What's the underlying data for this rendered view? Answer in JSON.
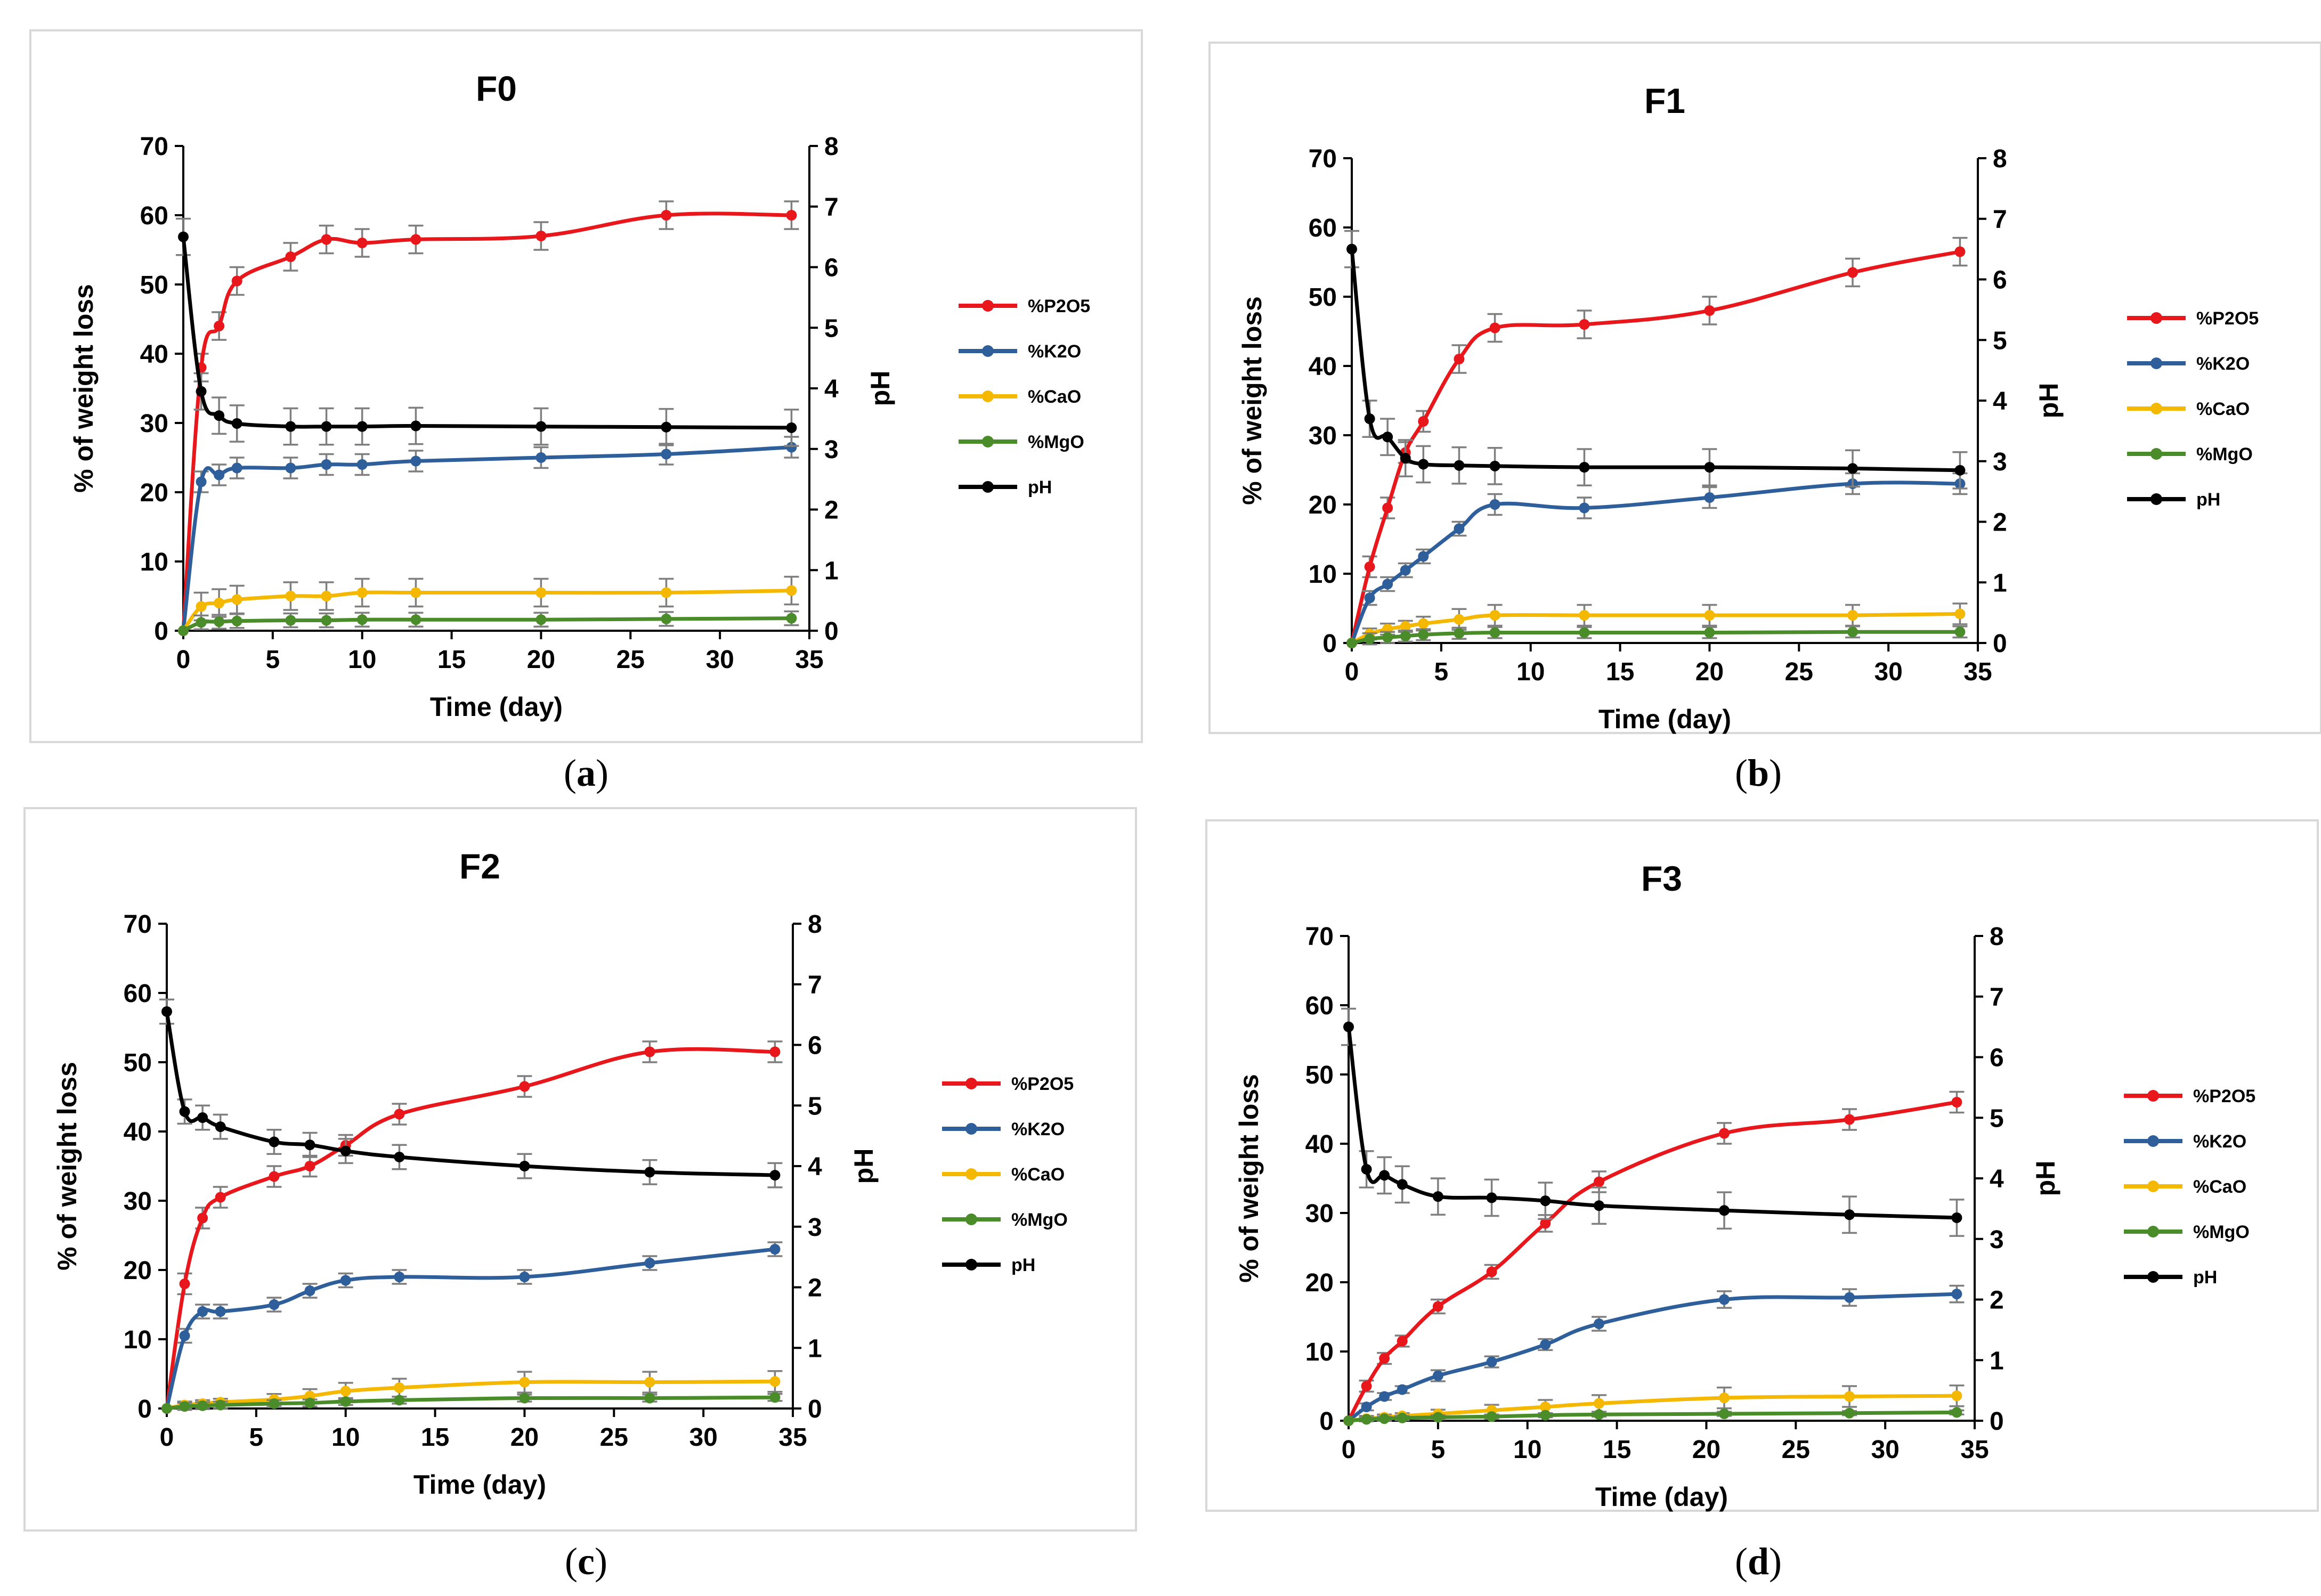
{
  "figure": {
    "panels": [
      {
        "caption_open": "(",
        "caption_letter": "a",
        "caption_close": ")"
      },
      {
        "caption_open": "(",
        "caption_letter": "b",
        "caption_close": ")"
      },
      {
        "caption_open": "(",
        "caption_letter": "c",
        "caption_close": ")"
      },
      {
        "caption_open": "(",
        "caption_letter": "d",
        "caption_close": ")"
      }
    ]
  },
  "chart_data": [
    {
      "type": "line",
      "title": "F0",
      "xlabel": "Time (day)",
      "ylabel": "% of weight loss",
      "y2label": "pH",
      "xlim": [
        0,
        35
      ],
      "ylim": [
        0,
        70
      ],
      "y2lim": [
        0,
        8
      ],
      "xticks": [
        "0",
        "5",
        "10",
        "15",
        "20",
        "25",
        "30",
        "35"
      ],
      "yticks": [
        "0",
        "10",
        "20",
        "30",
        "40",
        "50",
        "60",
        "70"
      ],
      "y2ticks": [
        "0",
        "1",
        "2",
        "3",
        "4",
        "5",
        "6",
        "7",
        "8"
      ],
      "legend_position": "right",
      "series": [
        {
          "name": "%P2O5",
          "color": "#e8171c",
          "axis": "left",
          "x": [
            0,
            1,
            2,
            3,
            6,
            8,
            10,
            13,
            20,
            27,
            34
          ],
          "y": [
            0,
            38,
            44,
            50.5,
            54,
            56.5,
            56,
            56.5,
            57,
            60,
            60
          ],
          "err": [
            0,
            2,
            2,
            2,
            2,
            2,
            2,
            2,
            2,
            2,
            2
          ]
        },
        {
          "name": "%K2O",
          "color": "#2e5f9a",
          "axis": "left",
          "x": [
            0,
            1,
            2,
            3,
            6,
            8,
            10,
            13,
            20,
            27,
            34
          ],
          "y": [
            0,
            21.5,
            22.5,
            23.5,
            23.5,
            24,
            24,
            24.5,
            25,
            25.5,
            26.5
          ],
          "err": [
            0,
            1.5,
            1.5,
            1.5,
            1.5,
            1.5,
            1.5,
            1.5,
            1.5,
            1.5,
            1.5
          ]
        },
        {
          "name": "%CaO",
          "color": "#f5b800",
          "axis": "left",
          "x": [
            0,
            1,
            2,
            3,
            6,
            8,
            10,
            13,
            20,
            27,
            34
          ],
          "y": [
            0,
            3.5,
            4,
            4.5,
            5,
            5,
            5.5,
            5.5,
            5.5,
            5.5,
            5.8
          ],
          "err": [
            0,
            2,
            2,
            2,
            2,
            2,
            2,
            2,
            2,
            2,
            2
          ]
        },
        {
          "name": "%MgO",
          "color": "#4a8c2a",
          "axis": "left",
          "x": [
            0,
            1,
            2,
            3,
            6,
            8,
            10,
            13,
            20,
            27,
            34
          ],
          "y": [
            0,
            1.2,
            1.3,
            1.4,
            1.5,
            1.5,
            1.6,
            1.6,
            1.6,
            1.7,
            1.8
          ],
          "err": [
            0,
            1,
            1,
            1,
            1,
            1,
            1,
            1,
            1,
            1,
            1
          ]
        },
        {
          "name": "pH",
          "color": "#000000",
          "axis": "right",
          "x": [
            0,
            1,
            2,
            3,
            6,
            8,
            10,
            13,
            20,
            27,
            34
          ],
          "y": [
            6.5,
            3.95,
            3.55,
            3.42,
            3.37,
            3.37,
            3.37,
            3.38,
            3.37,
            3.36,
            3.35
          ],
          "err": [
            0.3,
            0.3,
            0.3,
            0.3,
            0.3,
            0.3,
            0.3,
            0.3,
            0.3,
            0.3,
            0.3
          ]
        }
      ]
    },
    {
      "type": "line",
      "title": "F1",
      "xlabel": "Time (day)",
      "ylabel": "% of weight loss",
      "y2label": "pH",
      "xlim": [
        0,
        35
      ],
      "ylim": [
        0,
        70
      ],
      "y2lim": [
        0,
        8
      ],
      "xticks": [
        "0",
        "5",
        "10",
        "15",
        "20",
        "25",
        "30",
        "35"
      ],
      "yticks": [
        "0",
        "10",
        "20",
        "30",
        "40",
        "50",
        "60",
        "70"
      ],
      "y2ticks": [
        "0",
        "1",
        "2",
        "3",
        "4",
        "5",
        "6",
        "7",
        "8"
      ],
      "legend_position": "right",
      "series": [
        {
          "name": "%P2O5",
          "color": "#e8171c",
          "axis": "left",
          "x": [
            0,
            1,
            2,
            3,
            4,
            6,
            8,
            13,
            20,
            28,
            34
          ],
          "y": [
            0,
            11,
            19.5,
            27.5,
            32,
            41,
            45.5,
            46,
            48,
            53.5,
            56.5
          ],
          "err": [
            0,
            1.5,
            1.5,
            1.5,
            1.5,
            2,
            2,
            2,
            2,
            2,
            2
          ]
        },
        {
          "name": "%K2O",
          "color": "#2e5f9a",
          "axis": "left",
          "x": [
            0,
            1,
            2,
            3,
            4,
            6,
            8,
            13,
            20,
            28,
            34
          ],
          "y": [
            0,
            6.5,
            8.5,
            10.5,
            12.5,
            16.5,
            20,
            19.5,
            21,
            23,
            23
          ],
          "err": [
            0,
            1,
            1,
            1,
            1,
            1,
            1.5,
            1.5,
            1.5,
            1.5,
            1.5
          ]
        },
        {
          "name": "%CaO",
          "color": "#f5b800",
          "axis": "left",
          "x": [
            0,
            1,
            2,
            3,
            4,
            6,
            8,
            13,
            20,
            28,
            34
          ],
          "y": [
            0,
            1.3,
            2,
            2.4,
            2.8,
            3.4,
            4,
            4,
            4,
            4,
            4.2
          ],
          "err": [
            0,
            0.8,
            0.8,
            0.8,
            1,
            1.5,
            1.5,
            1.5,
            1.5,
            1.5,
            1.5
          ]
        },
        {
          "name": "%MgO",
          "color": "#4a8c2a",
          "axis": "left",
          "x": [
            0,
            1,
            2,
            3,
            4,
            6,
            8,
            13,
            20,
            28,
            34
          ],
          "y": [
            0,
            0.6,
            0.8,
            1,
            1.2,
            1.4,
            1.5,
            1.5,
            1.5,
            1.6,
            1.6
          ],
          "err": [
            0,
            0.8,
            0.8,
            0.8,
            0.8,
            0.8,
            0.8,
            0.8,
            0.8,
            0.8,
            0.8
          ]
        },
        {
          "name": "pH",
          "color": "#000000",
          "axis": "right",
          "x": [
            0,
            1,
            2,
            3,
            4,
            6,
            8,
            13,
            20,
            28,
            34
          ],
          "y": [
            6.5,
            3.7,
            3.4,
            3.05,
            2.95,
            2.93,
            2.92,
            2.9,
            2.9,
            2.88,
            2.85
          ],
          "err": [
            0.3,
            0.3,
            0.3,
            0.3,
            0.3,
            0.3,
            0.3,
            0.3,
            0.3,
            0.3,
            0.3
          ]
        }
      ]
    },
    {
      "type": "line",
      "title": "F2",
      "xlabel": "Time (day)",
      "ylabel": "% of weight loss",
      "y2label": "pH",
      "xlim": [
        0,
        35
      ],
      "ylim": [
        0,
        70
      ],
      "y2lim": [
        0,
        8
      ],
      "xticks": [
        "0",
        "5",
        "10",
        "15",
        "20",
        "25",
        "30",
        "35"
      ],
      "yticks": [
        "0",
        "10",
        "20",
        "30",
        "40",
        "50",
        "60",
        "70"
      ],
      "y2ticks": [
        "0",
        "1",
        "2",
        "3",
        "4",
        "5",
        "6",
        "7",
        "8"
      ],
      "legend_position": "right",
      "series": [
        {
          "name": "%P2O5",
          "color": "#e8171c",
          "axis": "left",
          "x": [
            0,
            1,
            2,
            3,
            6,
            8,
            10,
            13,
            20,
            27,
            34
          ],
          "y": [
            0,
            18,
            27.5,
            30.5,
            33.5,
            35,
            38,
            42.5,
            46.5,
            51.5,
            51.5
          ],
          "err": [
            0,
            1.5,
            1.5,
            1.5,
            1.5,
            1.5,
            1.5,
            1.5,
            1.5,
            1.5,
            1.5
          ]
        },
        {
          "name": "%K2O",
          "color": "#2e5f9a",
          "axis": "left",
          "x": [
            0,
            1,
            2,
            3,
            6,
            8,
            10,
            13,
            20,
            27,
            34
          ],
          "y": [
            0,
            10.5,
            14,
            14,
            15,
            17,
            18.5,
            19,
            19,
            21,
            23
          ],
          "err": [
            0,
            1,
            1,
            1,
            1,
            1,
            1,
            1,
            1,
            1,
            1
          ]
        },
        {
          "name": "%CaO",
          "color": "#f5b800",
          "axis": "left",
          "x": [
            0,
            1,
            2,
            3,
            6,
            8,
            10,
            13,
            20,
            27,
            34
          ],
          "y": [
            0,
            0.5,
            0.7,
            0.9,
            1.3,
            1.8,
            2.5,
            3,
            3.8,
            3.8,
            3.9
          ],
          "err": [
            0,
            0.5,
            0.5,
            0.5,
            0.8,
            1,
            1.2,
            1.3,
            1.5,
            1.5,
            1.5
          ]
        },
        {
          "name": "%MgO",
          "color": "#4a8c2a",
          "axis": "left",
          "x": [
            0,
            1,
            2,
            3,
            6,
            8,
            10,
            13,
            20,
            27,
            34
          ],
          "y": [
            0,
            0.3,
            0.4,
            0.5,
            0.7,
            0.8,
            1,
            1.2,
            1.5,
            1.5,
            1.6
          ],
          "err": [
            0,
            0.5,
            0.5,
            0.5,
            0.5,
            0.5,
            0.5,
            0.5,
            0.5,
            0.5,
            0.5
          ]
        },
        {
          "name": "pH",
          "color": "#000000",
          "axis": "right",
          "x": [
            0,
            1,
            2,
            3,
            6,
            8,
            10,
            13,
            20,
            27,
            34
          ],
          "y": [
            6.55,
            4.9,
            4.8,
            4.65,
            4.4,
            4.35,
            4.25,
            4.15,
            4.0,
            3.9,
            3.85
          ],
          "err": [
            0.2,
            0.2,
            0.2,
            0.2,
            0.2,
            0.2,
            0.2,
            0.2,
            0.2,
            0.2,
            0.2
          ]
        }
      ]
    },
    {
      "type": "line",
      "title": "F3",
      "xlabel": "Time (day)",
      "ylabel": "% of weight loss",
      "y2label": "pH",
      "xlim": [
        0,
        35
      ],
      "ylim": [
        0,
        70
      ],
      "y2lim": [
        0,
        8
      ],
      "xticks": [
        "0",
        "5",
        "10",
        "15",
        "20",
        "25",
        "30",
        "35"
      ],
      "yticks": [
        "0",
        "10",
        "20",
        "30",
        "40",
        "50",
        "60",
        "70"
      ],
      "y2ticks": [
        "0",
        "1",
        "2",
        "3",
        "4",
        "5",
        "6",
        "7",
        "8"
      ],
      "legend_position": "right",
      "series": [
        {
          "name": "%P2O5",
          "color": "#e8171c",
          "axis": "left",
          "x": [
            0,
            1,
            2,
            3,
            5,
            8,
            11,
            14,
            21,
            28,
            34
          ],
          "y": [
            0,
            5,
            9,
            11.5,
            16.5,
            21.5,
            28.5,
            34.5,
            41.5,
            43.5,
            46
          ],
          "err": [
            0,
            0.8,
            0.8,
            0.8,
            1,
            1,
            1.2,
            1.5,
            1.5,
            1.5,
            1.5
          ]
        },
        {
          "name": "%K2O",
          "color": "#2e5f9a",
          "axis": "left",
          "x": [
            0,
            1,
            2,
            3,
            5,
            8,
            11,
            14,
            21,
            28,
            34
          ],
          "y": [
            0,
            2,
            3.5,
            4.5,
            6.5,
            8.5,
            11,
            14,
            17.5,
            17.8,
            18.3
          ],
          "err": [
            0,
            0.5,
            0.5,
            0.5,
            0.8,
            0.8,
            0.8,
            1,
            1.2,
            1.2,
            1.2
          ]
        },
        {
          "name": "%CaO",
          "color": "#f5b800",
          "axis": "left",
          "x": [
            0,
            1,
            2,
            3,
            5,
            8,
            11,
            14,
            21,
            28,
            34
          ],
          "y": [
            0,
            0.3,
            0.5,
            0.7,
            1,
            1.5,
            2,
            2.5,
            3.3,
            3.5,
            3.6
          ],
          "err": [
            0,
            0.4,
            0.4,
            0.4,
            0.6,
            0.8,
            1,
            1.2,
            1.5,
            1.5,
            1.5
          ]
        },
        {
          "name": "%MgO",
          "color": "#4a8c2a",
          "axis": "left",
          "x": [
            0,
            1,
            2,
            3,
            5,
            8,
            11,
            14,
            21,
            28,
            34
          ],
          "y": [
            0,
            0.2,
            0.3,
            0.4,
            0.5,
            0.6,
            0.8,
            0.9,
            1,
            1.1,
            1.2
          ],
          "err": [
            0,
            0.3,
            0.3,
            0.3,
            0.3,
            0.3,
            0.3,
            0.3,
            0.3,
            0.3,
            0.3
          ]
        },
        {
          "name": "pH",
          "color": "#000000",
          "axis": "right",
          "x": [
            0,
            1,
            2,
            3,
            5,
            8,
            11,
            14,
            21,
            28,
            34
          ],
          "y": [
            6.5,
            4.15,
            4.05,
            3.9,
            3.7,
            3.68,
            3.63,
            3.55,
            3.47,
            3.4,
            3.35
          ],
          "err": [
            0.3,
            0.3,
            0.3,
            0.3,
            0.3,
            0.3,
            0.3,
            0.3,
            0.3,
            0.3,
            0.3
          ]
        }
      ]
    }
  ]
}
